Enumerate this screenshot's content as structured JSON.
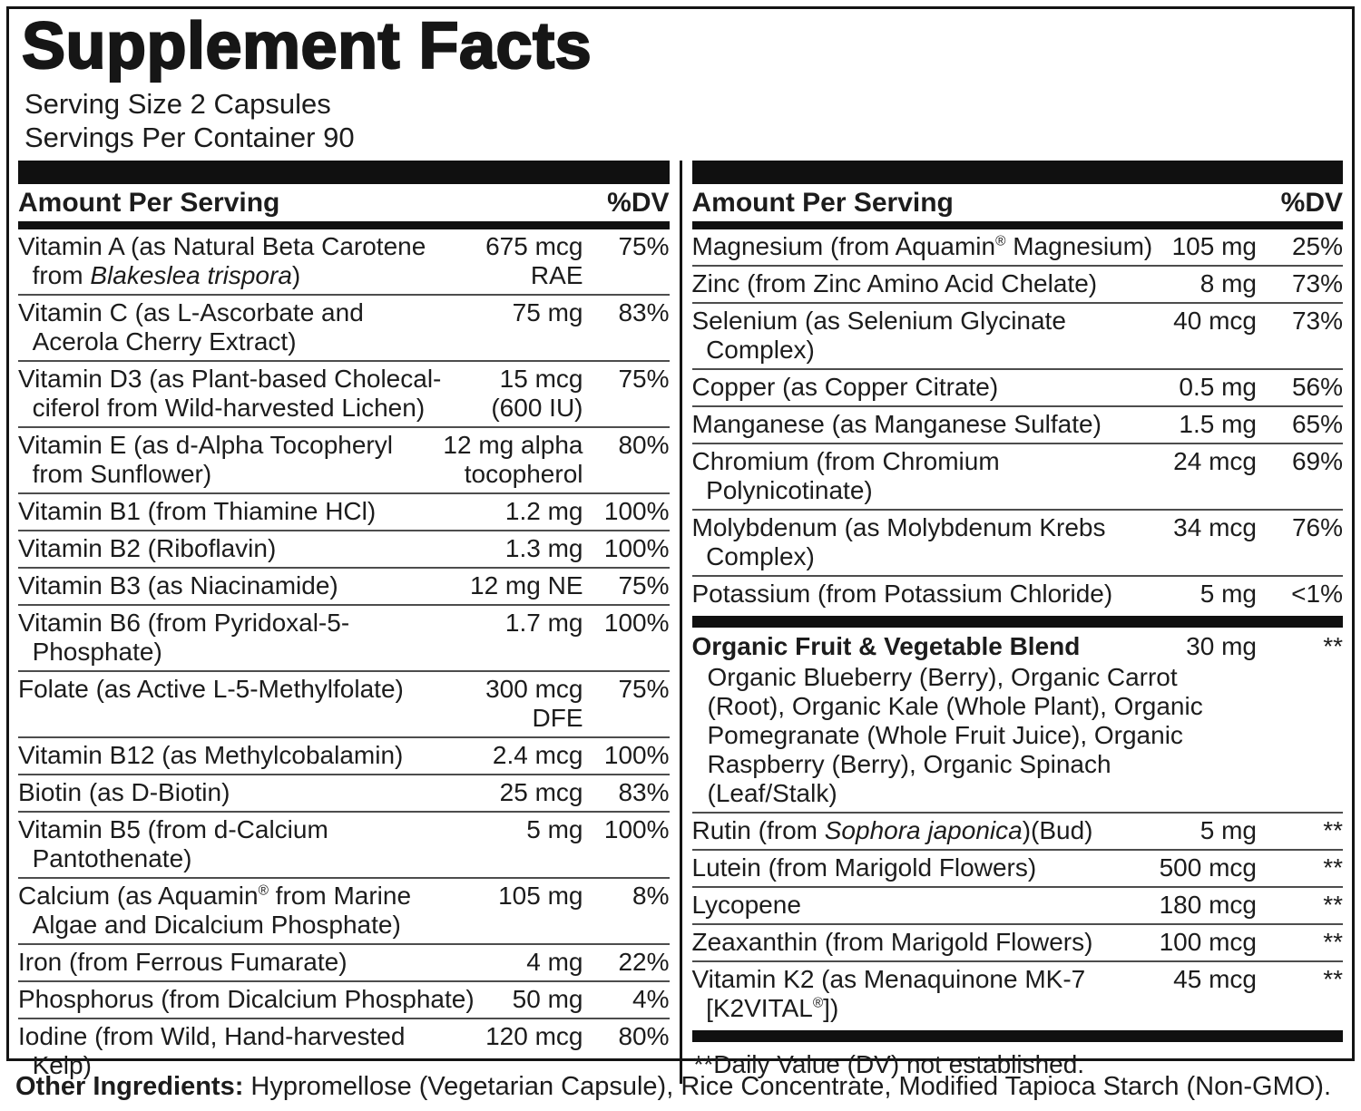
{
  "title": "Supplement Facts",
  "serving": {
    "size": "Serving Size 2 Capsules",
    "per_container": "Servings Per Container 90"
  },
  "table": {
    "header": {
      "amount": "Amount Per Serving",
      "dv": "%DV"
    },
    "left_rows": [
      {
        "name": "Vitamin A (as Natural Beta Carotene\n  from *Blakeslea trispora*)",
        "amount": "675 mcg\nRAE",
        "dv": "75%"
      },
      {
        "name": "Vitamin C (as L-Ascorbate and\n  Acerola Cherry Extract)",
        "amount": "75 mg",
        "dv": "83%"
      },
      {
        "name": "Vitamin D3 (as Plant-based Cholecal-\n  ciferol from Wild-harvested Lichen)",
        "amount": "15 mcg\n(600 IU)",
        "dv": "75%"
      },
      {
        "name": "Vitamin E (as d-Alpha Tocopheryl\n  from Sunflower)",
        "amount": "12 mg alpha\ntocopherol",
        "dv": "80%"
      },
      {
        "name": "Vitamin B1 (from Thiamine HCl)",
        "amount": "1.2 mg",
        "dv": "100%"
      },
      {
        "name": "Vitamin B2 (Riboflavin)",
        "amount": "1.3 mg",
        "dv": "100%"
      },
      {
        "name": "Vitamin B3 (as Niacinamide)",
        "amount": "12 mg NE",
        "dv": "75%"
      },
      {
        "name": "Vitamin B6 (from Pyridoxal-5-\n  Phosphate)",
        "amount": "1.7 mg",
        "dv": "100%"
      },
      {
        "name": "Folate (as Active L-5-Methylfolate)",
        "amount": "300 mcg\nDFE",
        "dv": "75%"
      },
      {
        "name": "Vitamin B12 (as Methylcobalamin)",
        "amount": "2.4 mcg",
        "dv": "100%"
      },
      {
        "name": "Biotin (as D-Biotin)",
        "amount": "25 mcg",
        "dv": "83%"
      },
      {
        "name": "Vitamin B5 (from d-Calcium\n  Pantothenate)",
        "amount": "5 mg",
        "dv": "100%"
      },
      {
        "name": "Calcium (as Aquamin^®^ from Marine\n  Algae and Dicalcium Phosphate)",
        "amount": "105 mg",
        "dv": "8%"
      },
      {
        "name": "Iron (from Ferrous Fumarate)",
        "amount": "4 mg",
        "dv": "22%"
      },
      {
        "name": "Phosphorus (from Dicalcium Phosphate)",
        "amount": "50 mg",
        "dv": "4%"
      },
      {
        "name": "Iodine (from Wild, Hand-harvested\n  Kelp)",
        "amount": "120 mcg",
        "dv": "80%"
      }
    ],
    "right_rows_minerals": [
      {
        "name": "Magnesium (from Aquamin^®^ Magnesium)",
        "amount": "105 mg",
        "dv": "25%"
      },
      {
        "name": "Zinc (from Zinc Amino Acid Chelate)",
        "amount": "8 mg",
        "dv": "73%"
      },
      {
        "name": "Selenium (as Selenium Glycinate\n  Complex)",
        "amount": "40 mcg",
        "dv": "73%"
      },
      {
        "name": "Copper (as Copper Citrate)",
        "amount": "0.5 mg",
        "dv": "56%"
      },
      {
        "name": "Manganese (as Manganese Sulfate)",
        "amount": "1.5 mg",
        "dv": "65%"
      },
      {
        "name": "Chromium (from Chromium\n  Polynicotinate)",
        "amount": "24 mcg",
        "dv": "69%"
      },
      {
        "name": "Molybdenum (as Molybdenum Krebs\n  Complex)",
        "amount": "34 mcg",
        "dv": "76%"
      },
      {
        "name": "Potassium (from Potassium Chloride)",
        "amount": "5 mg",
        "dv": "<1%"
      }
    ],
    "right_rows_botanicals": [
      {
        "name": "Organic Fruit & Vegetable Blend",
        "amount": "30 mg",
        "dv": "**",
        "bold": true,
        "sub": "Organic Blueberry (Berry), Organic Carrot\n(Root), Organic Kale (Whole Plant), Organic\nPomegranate (Whole Fruit Juice), Organic\nRaspberry (Berry), Organic Spinach\n(Leaf/Stalk)"
      },
      {
        "name": "Rutin (from *Sophora japonica*)(Bud)",
        "amount": "5 mg",
        "dv": "**"
      },
      {
        "name": "Lutein (from Marigold Flowers)",
        "amount": "500 mcg",
        "dv": "**"
      },
      {
        "name": "Lycopene",
        "amount": "180 mcg",
        "dv": "**"
      },
      {
        "name": "Zeaxanthin (from Marigold Flowers)",
        "amount": "100 mcg",
        "dv": "**"
      },
      {
        "name": "Vitamin K2 (as Menaquinone MK-7\n  [K2VITAL^®^])",
        "amount": "45 mcg",
        "dv": "**"
      }
    ],
    "footnote": "**Daily Value (DV) not established."
  },
  "other_ingredients": {
    "label": "Other Ingredients:",
    "text": " Hypromellose (Vegetarian Capsule), Rice Concentrate, Modified Tapioca Starch (Non-GMO)."
  },
  "colors": {
    "text": "#1c1c1c",
    "bar": "#101010",
    "hairline": "#4d4d4d",
    "background": "#ffffff"
  }
}
